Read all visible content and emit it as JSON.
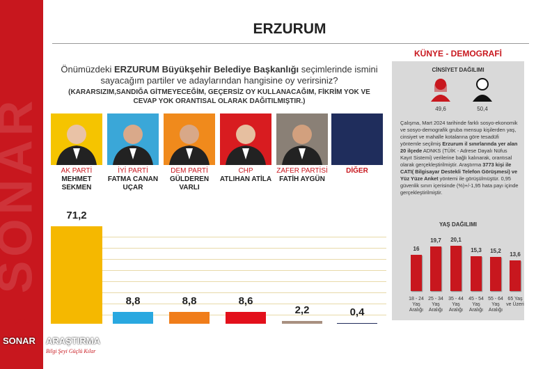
{
  "header": {
    "title": "ERZURUM",
    "watermark": "SONAR"
  },
  "question": {
    "parts": [
      "Önümüzdeki ",
      "ERZURUM Büyükşehir Belediye Başkanlığı",
      " seçimlerinde ismini sayacağım partiler ve adaylarından hangisine oy verirsiniz?"
    ],
    "note": "(KARARSIZIM,SANDIĞA GİTMEYECEĞİM, GEÇERSİZ OY KULLANACAĞIM, FİKRİM YOK VE CEVAP YOK ORANTISAL OLARAK DAĞITILMIŞTIR.)"
  },
  "chart_data": [
    {
      "type": "bar",
      "categories": [
        "AK PARTİ",
        "İYİ PARTİ",
        "DEM PARTİ",
        "CHP",
        "ZAFER PARTİSİ",
        "DİĞER"
      ],
      "candidates": [
        "MEHMET SEKMEN",
        "FATMA CANAN UÇAR",
        "GÜLDEREN VARLI",
        "ATLIHAN ATİLA",
        "FATİH AYGÜN",
        null
      ],
      "values": [
        71.2,
        8.8,
        8.8,
        8.6,
        2.2,
        0.4
      ],
      "value_labels": [
        "71,2",
        "8,8",
        "8,8",
        "8,6",
        "2,2",
        "0,4"
      ],
      "colors": [
        "#f5b800",
        "#29a8e0",
        "#f07d1a",
        "#e3101b",
        "#a89080",
        "#1e2a5a"
      ],
      "ylim": [
        0,
        80
      ]
    },
    {
      "type": "bar",
      "title": "YAŞ DAĞILIMI",
      "categories": [
        "18 - 24 Yaş Aralığı",
        "25 - 34 Yaş Aralığı",
        "35 - 44 Yaş Aralığı",
        "45 - 54 Yaş Aralığı",
        "55 - 64 Yaş Aralığı",
        "65 Yaş ve Üzeri"
      ],
      "values": [
        16,
        19.7,
        20.1,
        15.3,
        15.2,
        13.6
      ],
      "value_labels": [
        "16",
        "19,7",
        "20,1",
        "15,3",
        "15,2",
        "13,6"
      ],
      "color": "#c8171e",
      "ylim": [
        0,
        24
      ]
    }
  ],
  "sidebar": {
    "title": "KÜNYE - DEMOGRAFİ",
    "gender": {
      "title": "CİNSİYET DAĞILIMI",
      "female": "49,6",
      "male": "50,4"
    },
    "description": [
      "Çalışma, Mart 2024 tarihinde farklı sosyo-ekonomik ve sosyo-demografik gruba mensup kişilerden yaş, cinsiyet ve mahalle kotalarına göre tesadüfi yöntemle seçilmiş ",
      "Erzurum il sınırlarında yer alan 20 ilçede",
      " ADNKS (TÜİK - Adrese Dayalı Nüfus Kayıt Sistemi) verilerine bağlı kalınarak, orantısal olarak gerçekleştirilmiştir. Araştırma ",
      "3773 kişi ile CATI( Bilgisayar Destekli Telefon Görüşmesi) ve Yüz Yüze Anket",
      " yöntemi ile görüşülmüştür. 0,95 güvenlik sınırı içerisinde (%)+/-1,95 hata payı içinde gerçekleştirilmiştir."
    ]
  },
  "logo": {
    "name": "SONAR",
    "subtitle": "ARAŞTIRMA",
    "tagline": "Bilgi Şeyi Güçlü Kılar"
  }
}
